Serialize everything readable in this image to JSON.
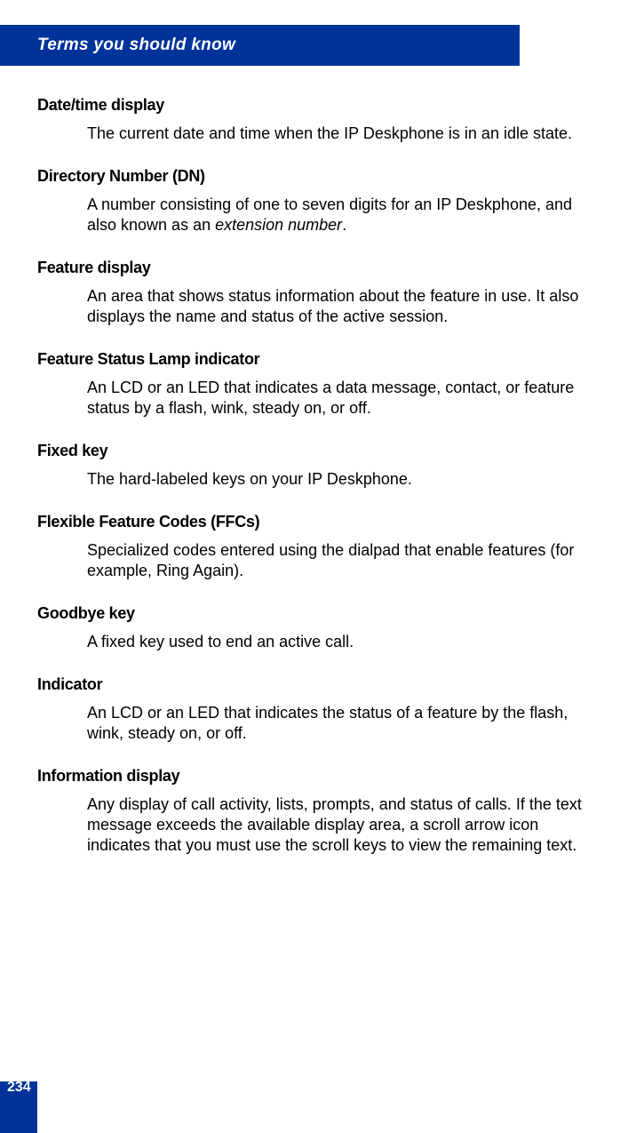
{
  "header": {
    "title": "Terms you should know"
  },
  "terms": [
    {
      "title": "Date/time display",
      "desc": "The current date and time when the IP Deskphone is in an idle state."
    },
    {
      "title": "Directory Number (DN)",
      "desc_prefix": "A number consisting of one to seven digits for an IP Deskphone, and also known as an ",
      "desc_italic": "extension number",
      "desc_suffix": "."
    },
    {
      "title": "Feature display",
      "desc": "An area that shows status information about the feature in use. It also displays the name and status of the active session."
    },
    {
      "title": "Feature Status Lamp indicator",
      "desc": "An LCD or an LED that indicates a data message, contact, or feature status by a flash, wink, steady on, or off."
    },
    {
      "title": "Fixed key",
      "desc": "The hard-labeled keys on your IP Deskphone."
    },
    {
      "title": "Flexible Feature Codes (FFCs)",
      "desc": "Specialized codes entered using the dialpad that enable features (for example, Ring Again)."
    },
    {
      "title": "Goodbye key",
      "desc": "A fixed key used to end an active call."
    },
    {
      "title": "Indicator",
      "desc": "An LCD or an LED that indicates the status of a feature by the flash, wink, steady on, or off."
    },
    {
      "title": "Information display",
      "desc": "Any display of call activity, lists, prompts, and status of calls. If the text message exceeds the available display area, a scroll arrow icon indicates that you must use the scroll keys to view the remaining text."
    }
  ],
  "page_number": "234",
  "colors": {
    "brand_blue": "#003399",
    "text": "#000000",
    "bg": "#ffffff"
  }
}
